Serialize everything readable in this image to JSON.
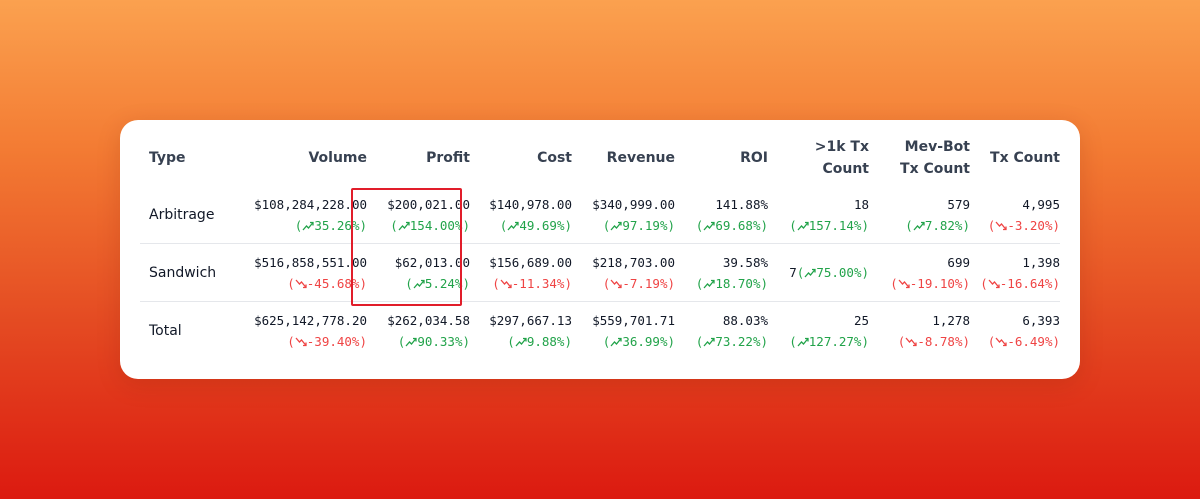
{
  "table": {
    "headers": {
      "type": "Type",
      "volume": "Volume",
      "profit": "Profit",
      "cost": "Cost",
      "revenue": "Revenue",
      "roi": "ROI",
      "k1_line1": ">1k Tx",
      "k1_line2": "Count",
      "mev_line1": "Mev-Bot",
      "mev_line2": "Tx Count",
      "tx": "Tx Count"
    },
    "rows": [
      {
        "type": "Arbitrage",
        "volume": "$108,284,228.00",
        "volume_chg": "35.26%",
        "volume_dir": "up",
        "profit": "$200,021.00",
        "profit_chg": "154.00%",
        "profit_dir": "up",
        "cost": "$140,978.00",
        "cost_chg": "49.69%",
        "cost_dir": "up",
        "revenue": "$340,999.00",
        "revenue_chg": "97.19%",
        "revenue_dir": "up",
        "roi": "141.88%",
        "roi_chg": "69.68%",
        "roi_dir": "up",
        "k1": "18",
        "k1_chg": "157.14%",
        "k1_dir": "up",
        "mev": "579",
        "mev_chg": "7.82%",
        "mev_dir": "up",
        "tx": "4,995",
        "tx_chg": "-3.20%",
        "tx_dir": "down"
      },
      {
        "type": "Sandwich",
        "volume": "$516,858,551.00",
        "volume_chg": "-45.68%",
        "volume_dir": "down",
        "profit": "$62,013.00",
        "profit_chg": "5.24%",
        "profit_dir": "up",
        "cost": "$156,689.00",
        "cost_chg": "-11.34%",
        "cost_dir": "down",
        "revenue": "$218,703.00",
        "revenue_chg": "-7.19%",
        "revenue_dir": "down",
        "roi": "39.58%",
        "roi_chg": "18.70%",
        "roi_dir": "up",
        "k1": "7",
        "k1_chg": "75.00%",
        "k1_dir": "up",
        "mev": "699",
        "mev_chg": "-19.10%",
        "mev_dir": "down",
        "tx": "1,398",
        "tx_chg": "-16.64%",
        "tx_dir": "down"
      },
      {
        "type": "Total",
        "volume": "$625,142,778.20",
        "volume_chg": "-39.40%",
        "volume_dir": "down",
        "profit": "$262,034.58",
        "profit_chg": "90.33%",
        "profit_dir": "up",
        "cost": "$297,667.13",
        "cost_chg": "9.88%",
        "cost_dir": "up",
        "revenue": "$559,701.71",
        "revenue_chg": "36.99%",
        "revenue_dir": "up",
        "roi": "88.03%",
        "roi_chg": "73.22%",
        "roi_dir": "up",
        "k1": "25",
        "k1_chg": "127.27%",
        "k1_dir": "up",
        "mev": "1,278",
        "mev_chg": "-8.78%",
        "mev_dir": "down",
        "tx": "6,393",
        "tx_chg": "-6.49%",
        "tx_dir": "down"
      }
    ]
  },
  "colors": {
    "up": "#22a34a",
    "down": "#ef4444",
    "highlight_border": "#e11d2a"
  },
  "icons": {
    "up": "trend-up-icon",
    "down": "trend-down-icon"
  }
}
